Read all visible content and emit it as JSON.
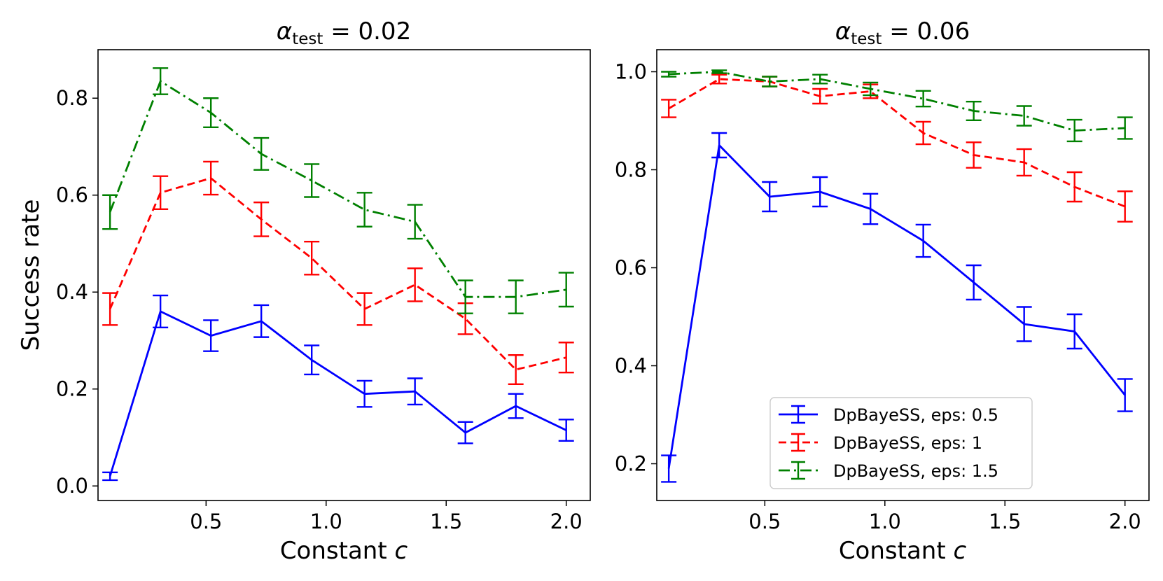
{
  "chart_data": [
    {
      "type": "line",
      "title": {
        "symbol": "α",
        "subscript": "test",
        "rest": " = 0.02"
      },
      "xlabel": {
        "text": "Constant ",
        "var": "c"
      },
      "ylabel": "Success rate",
      "xlim": [
        0.05,
        2.1
      ],
      "ylim": [
        -0.03,
        0.9
      ],
      "xticks": [
        0.5,
        1.0,
        1.5,
        2.0
      ],
      "xtick_labels": [
        "0.5",
        "1.0",
        "1.5",
        "2.0"
      ],
      "yticks": [
        0.0,
        0.2,
        0.4,
        0.6,
        0.8
      ],
      "ytick_labels": [
        "0.0",
        "0.2",
        "0.4",
        "0.6",
        "0.8"
      ],
      "x": [
        0.1,
        0.31,
        0.52,
        0.73,
        0.94,
        1.16,
        1.37,
        1.58,
        1.79,
        2.0
      ],
      "series": [
        {
          "name": "DpBayeSS, eps: 0.5",
          "color": "#0000ff",
          "style": "solid",
          "values": [
            0.02,
            0.36,
            0.31,
            0.34,
            0.26,
            0.19,
            0.195,
            0.11,
            0.165,
            0.115
          ],
          "errors": [
            0.008,
            0.033,
            0.032,
            0.033,
            0.03,
            0.027,
            0.027,
            0.022,
            0.025,
            0.022
          ]
        },
        {
          "name": "DpBayeSS, eps: 1",
          "color": "#ff0000",
          "style": "dashed",
          "values": [
            0.365,
            0.605,
            0.635,
            0.55,
            0.47,
            0.365,
            0.415,
            0.345,
            0.24,
            0.265
          ],
          "errors": [
            0.033,
            0.034,
            0.034,
            0.035,
            0.034,
            0.033,
            0.034,
            0.032,
            0.03,
            0.031
          ]
        },
        {
          "name": "DpBayeSS, eps: 1.5",
          "color": "#008000",
          "style": "dashdot",
          "values": [
            0.565,
            0.835,
            0.77,
            0.685,
            0.63,
            0.57,
            0.545,
            0.39,
            0.39,
            0.405
          ],
          "errors": [
            0.035,
            0.027,
            0.03,
            0.033,
            0.034,
            0.035,
            0.035,
            0.034,
            0.034,
            0.035
          ]
        }
      ]
    },
    {
      "type": "line",
      "title": {
        "symbol": "α",
        "subscript": "test",
        "rest": " = 0.06"
      },
      "xlabel": {
        "text": "Constant ",
        "var": "c"
      },
      "ylabel": "",
      "xlim": [
        0.05,
        2.1
      ],
      "ylim": [
        0.125,
        1.045
      ],
      "xticks": [
        0.5,
        1.0,
        1.5,
        2.0
      ],
      "xtick_labels": [
        "0.5",
        "1.0",
        "1.5",
        "2.0"
      ],
      "yticks": [
        0.2,
        0.4,
        0.6,
        0.8,
        1.0
      ],
      "ytick_labels": [
        "0.2",
        "0.4",
        "0.6",
        "0.8",
        "1.0"
      ],
      "legend_position": "lower-right",
      "x": [
        0.1,
        0.31,
        0.52,
        0.73,
        0.94,
        1.16,
        1.37,
        1.58,
        1.79,
        2.0
      ],
      "series": [
        {
          "name": "DpBayeSS, eps: 0.5",
          "color": "#0000ff",
          "style": "solid",
          "values": [
            0.19,
            0.85,
            0.745,
            0.755,
            0.72,
            0.655,
            0.57,
            0.485,
            0.47,
            0.34
          ],
          "errors": [
            0.027,
            0.025,
            0.03,
            0.03,
            0.031,
            0.033,
            0.035,
            0.035,
            0.035,
            0.033
          ]
        },
        {
          "name": "DpBayeSS, eps: 1",
          "color": "#ff0000",
          "style": "dashed",
          "values": [
            0.925,
            0.985,
            0.98,
            0.95,
            0.96,
            0.875,
            0.83,
            0.815,
            0.765,
            0.725
          ],
          "errors": [
            0.018,
            0.009,
            0.01,
            0.015,
            0.014,
            0.023,
            0.026,
            0.027,
            0.03,
            0.031
          ]
        },
        {
          "name": "DpBayeSS, eps: 1.5",
          "color": "#008000",
          "style": "dashdot",
          "values": [
            0.995,
            1.0,
            0.98,
            0.985,
            0.965,
            0.945,
            0.92,
            0.91,
            0.88,
            0.885
          ],
          "errors": [
            0.005,
            0.003,
            0.01,
            0.009,
            0.013,
            0.016,
            0.019,
            0.02,
            0.022,
            0.022
          ]
        }
      ]
    }
  ]
}
